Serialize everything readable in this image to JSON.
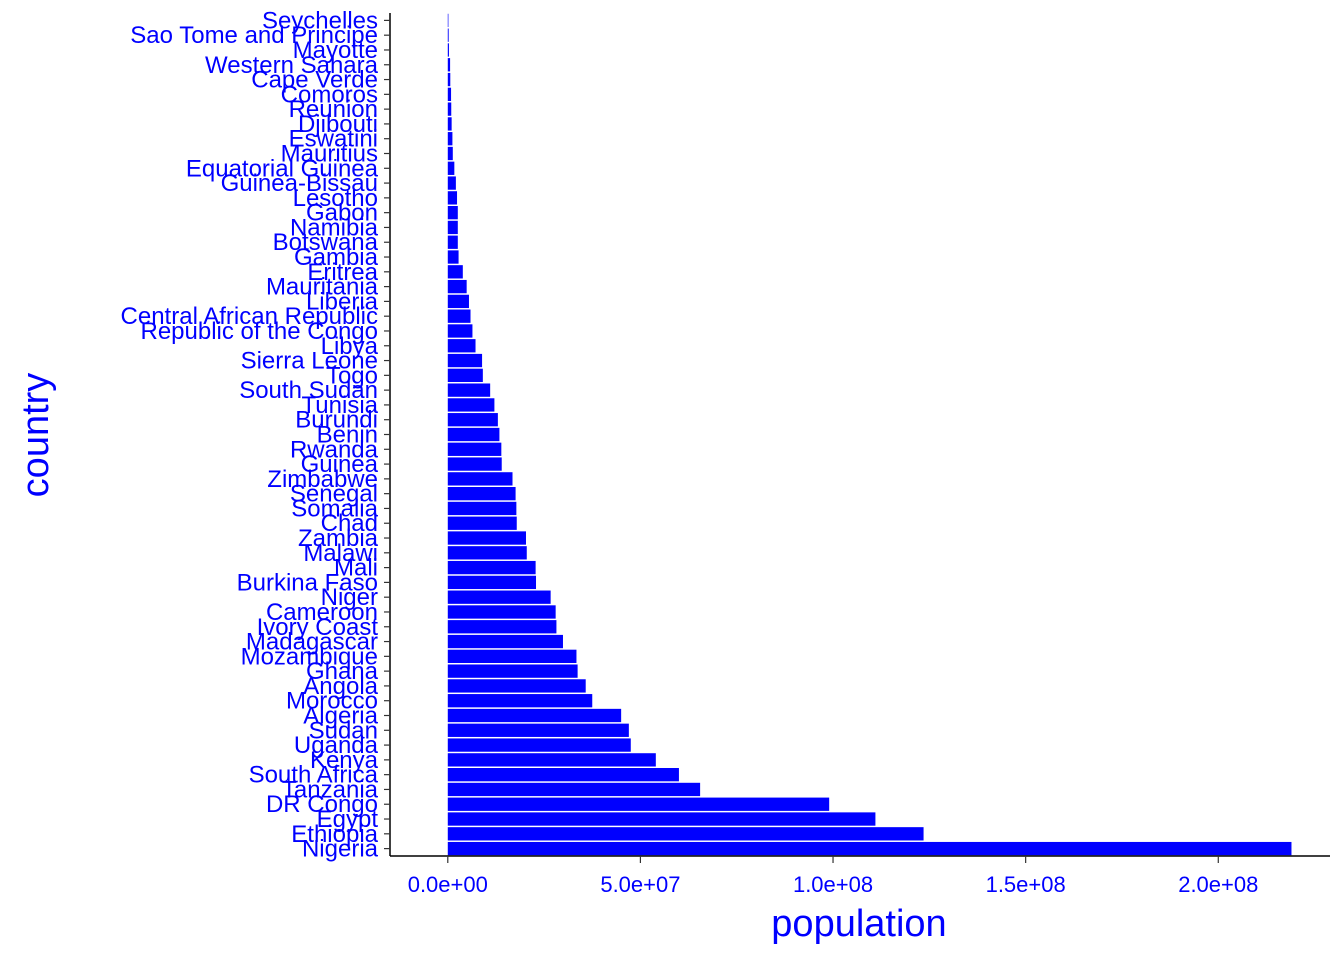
{
  "chart_data": {
    "type": "bar",
    "orientation": "horizontal",
    "xlabel": "population",
    "ylabel": "country",
    "xlim": [
      -15000000,
      229000000
    ],
    "xticks": [
      0,
      50000000,
      100000000,
      150000000,
      200000000
    ],
    "xtick_labels": [
      "0.0e+00",
      "5.0e+07",
      "1.0e+08",
      "1.5e+08",
      "2.0e+08"
    ],
    "grid": false,
    "bar_color": "#0000ff",
    "text_color": "#0000ff",
    "categories": [
      "Nigeria",
      "Ethiopia",
      "Egypt",
      "DR Congo",
      "Tanzania",
      "South Africa",
      "Kenya",
      "Uganda",
      "Sudan",
      "Algeria",
      "Morocco",
      "Angola",
      "Ghana",
      "Mozambique",
      "Madagascar",
      "Ivory Coast",
      "Cameroon",
      "Niger",
      "Burkina Faso",
      "Mali",
      "Malawi",
      "Zambia",
      "Chad",
      "Somalia",
      "Senegal",
      "Zimbabwe",
      "Guinea",
      "Rwanda",
      "Benin",
      "Burundi",
      "Tunisia",
      "South Sudan",
      "Togo",
      "Sierra Leone",
      "Libya",
      "Republic of the Congo",
      "Central African Republic",
      "Liberia",
      "Mauritania",
      "Eritrea",
      "Gambia",
      "Botswana",
      "Namibia",
      "Gabon",
      "Lesotho",
      "Guinea-Bissau",
      "Equatorial Guinea",
      "Mauritius",
      "Eswatini",
      "Djibouti",
      "Reunion",
      "Comoros",
      "Cape Verde",
      "Western Sahara",
      "Mayotte",
      "Sao Tome and Principe",
      "Seychelles"
    ],
    "values": [
      219000000,
      123500000,
      111000000,
      99000000,
      65500000,
      60000000,
      54000000,
      47500000,
      47000000,
      45000000,
      37500000,
      35800000,
      33700000,
      33400000,
      29900000,
      28200000,
      28000000,
      26700000,
      22900000,
      22800000,
      20500000,
      20300000,
      17900000,
      17800000,
      17600000,
      16800000,
      14000000,
      13900000,
      13400000,
      13000000,
      12100000,
      11000000,
      9100000,
      8900000,
      7200000,
      6400000,
      5900000,
      5500000,
      4900000,
      3900000,
      2800000,
      2600000,
      2600000,
      2600000,
      2400000,
      2100000,
      1700000,
      1300000,
      1200000,
      1000000,
      900000,
      850000,
      650000,
      600000,
      300000,
      230000,
      100000
    ]
  }
}
